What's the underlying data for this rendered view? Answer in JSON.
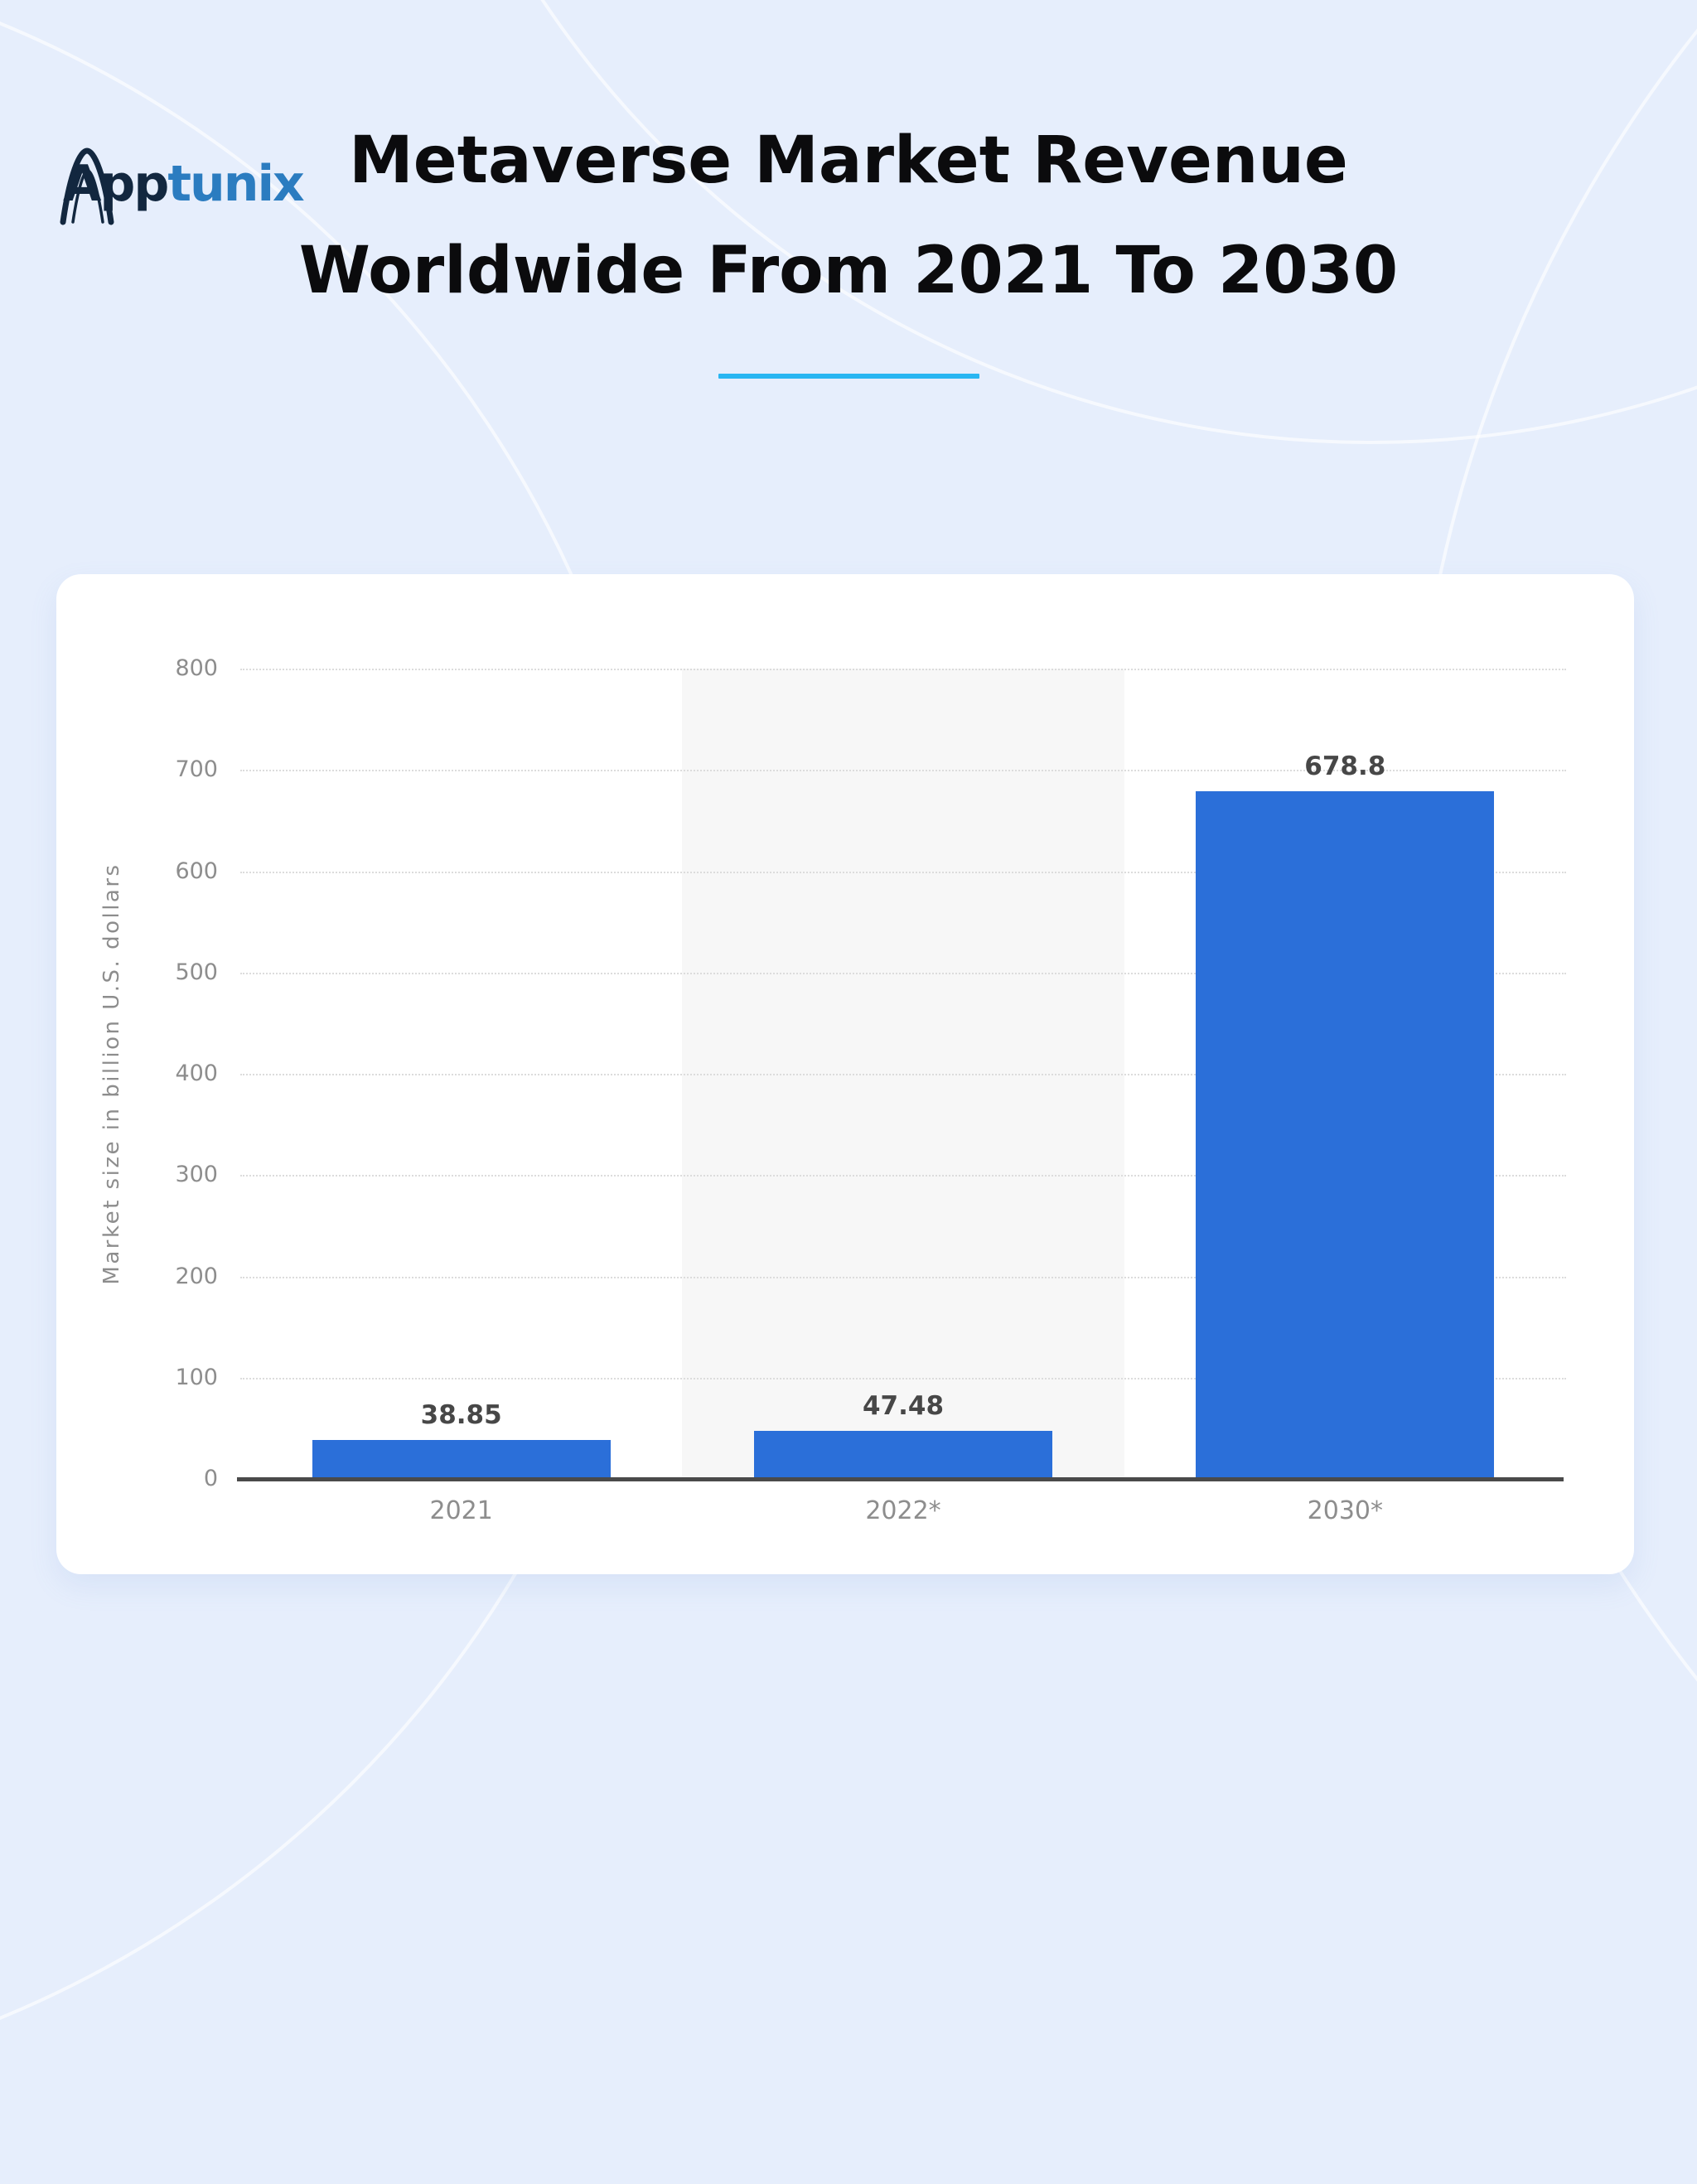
{
  "logo": {
    "brand_prefix": "App",
    "brand_suffix": "tunix",
    "prefix_color": "#12273f",
    "suffix_color": "#2b7cc0"
  },
  "title": {
    "line1": "Metaverse Market Revenue",
    "line2": "Worldwide From 2021 To 2030",
    "underline_color": "#29b6f2"
  },
  "chart_data": {
    "type": "bar",
    "categories": [
      "2021",
      "2022*",
      "2030*"
    ],
    "values": [
      38.85,
      47.48,
      678.8
    ],
    "value_labels": [
      "38.85",
      "47.48",
      "678.8"
    ],
    "title": "",
    "xlabel": "",
    "ylabel": "Market size in billion U.S. dollars",
    "ylim": [
      0,
      800
    ],
    "yticks": [
      0,
      100,
      200,
      300,
      400,
      500,
      600,
      700,
      800
    ],
    "grid": "horizontal-dotted",
    "legend": "none",
    "bar_color": "#2b6fd9",
    "highlighted_category_index": 1,
    "highlight_color": "#f7f7f7",
    "axis_line_color": "#4a4a4a",
    "tick_label_color": "#8d8d8d",
    "value_label_color": "#474747"
  }
}
